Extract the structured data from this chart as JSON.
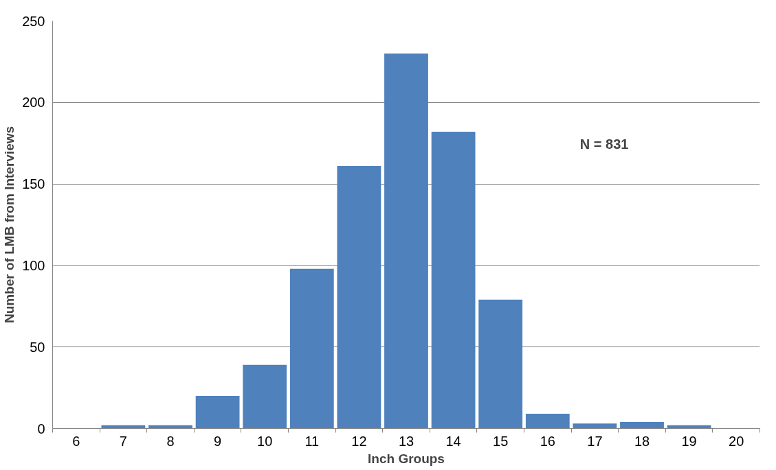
{
  "chart_data": {
    "type": "bar",
    "xlabel": "Inch Groups",
    "ylabel": "Number of LMB from Interviews",
    "categories": [
      "6",
      "7",
      "8",
      "9",
      "10",
      "11",
      "12",
      "13",
      "14",
      "15",
      "16",
      "17",
      "18",
      "19",
      "20"
    ],
    "values": [
      0,
      2,
      2,
      20,
      39,
      98,
      161,
      230,
      182,
      79,
      9,
      3,
      4,
      2,
      0
    ],
    "color": "#4f81bd",
    "ylim": [
      0,
      250
    ],
    "yticks": [
      0,
      50,
      100,
      150,
      200,
      250
    ],
    "grid": "y",
    "annotations": [
      "N = 831"
    ]
  }
}
